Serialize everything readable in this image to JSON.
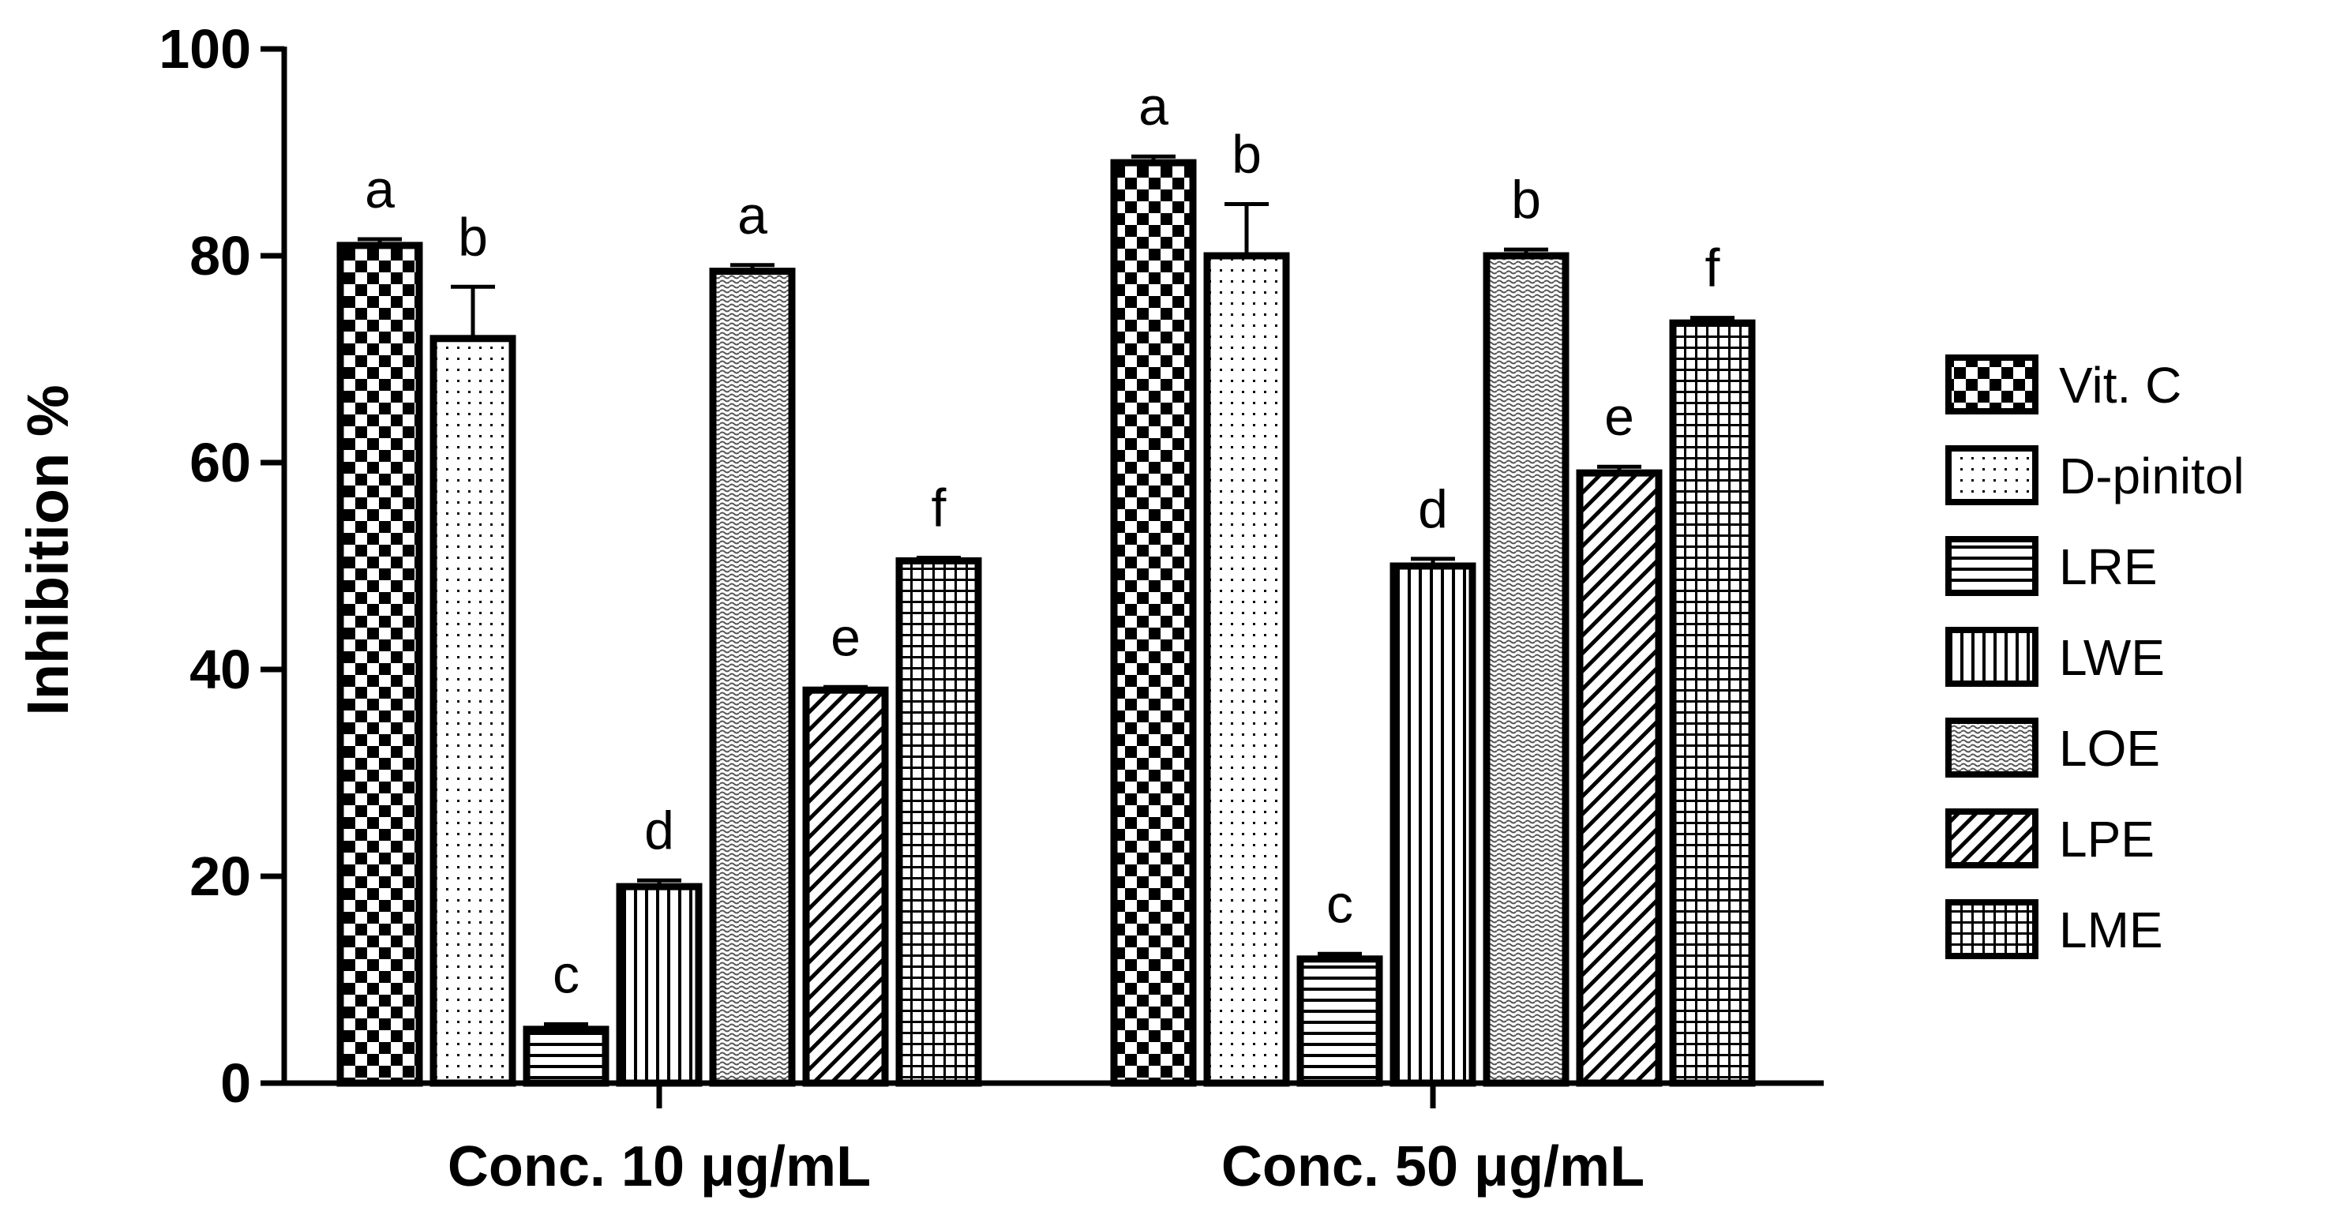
{
  "chart_data": {
    "type": "bar",
    "ylabel": "Inhibition %",
    "xlabel": "",
    "ylim": [
      0,
      100
    ],
    "yticks": [
      0,
      20,
      40,
      60,
      80,
      100
    ],
    "categories": [
      "Conc. 10 μg/mL",
      "Conc. 50 μg/mL"
    ],
    "legend_position": "right",
    "series": [
      {
        "name": "Vit. C",
        "pattern": "checker",
        "values": [
          81,
          89
        ],
        "errors": [
          0.6,
          0.6
        ],
        "letters": [
          "a",
          "a"
        ]
      },
      {
        "name": "D-pinitol",
        "pattern": "dots",
        "values": [
          72,
          80
        ],
        "errors": [
          5,
          5
        ],
        "letters": [
          "b",
          "b"
        ]
      },
      {
        "name": "LRE",
        "pattern": "hlines",
        "values": [
          5.2,
          12
        ],
        "errors": [
          0.5,
          0.5
        ],
        "letters": [
          "c",
          "c"
        ]
      },
      {
        "name": "LWE",
        "pattern": "vlines",
        "values": [
          19,
          50
        ],
        "errors": [
          0.6,
          0.7
        ],
        "letters": [
          "d",
          "d"
        ]
      },
      {
        "name": "LOE",
        "pattern": "fine-checker",
        "values": [
          78.5,
          80
        ],
        "errors": [
          0.6,
          0.6
        ],
        "letters": [
          "a",
          "b"
        ]
      },
      {
        "name": "LPE",
        "pattern": "diagonal",
        "values": [
          38,
          59
        ],
        "errors": [
          0.3,
          0.6
        ],
        "letters": [
          "e",
          "e"
        ]
      },
      {
        "name": "LME",
        "pattern": "grid",
        "values": [
          50.5,
          73.5
        ],
        "errors": [
          0.3,
          0.5
        ],
        "letters": [
          "f",
          "f"
        ]
      }
    ]
  }
}
